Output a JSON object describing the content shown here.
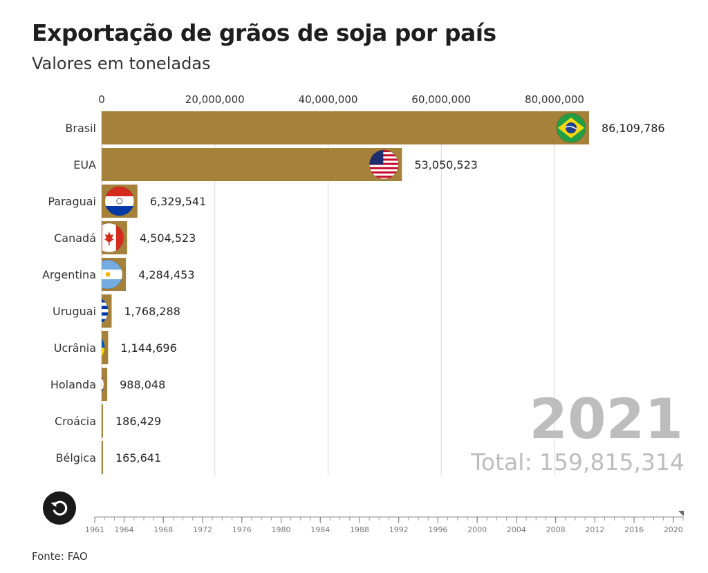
{
  "header": {
    "title": "Exportação de grãos de soja por país",
    "subtitle": "Valores em toneladas"
  },
  "footer": {
    "source": "Fonte: FAO"
  },
  "controls": {
    "replay_icon": "replay-icon"
  },
  "chart_data": {
    "type": "bar",
    "orientation": "horizontal",
    "xlim": [
      0,
      86109786
    ],
    "x_ticks": [
      0,
      20000000,
      40000000,
      60000000,
      80000000
    ],
    "x_tick_labels": [
      "0",
      "20,000,000",
      "40,000,000",
      "60,000,000",
      "80,000,000"
    ],
    "x_axis_position": "top",
    "grid": true,
    "categories": [
      "Brasil",
      "EUA",
      "Paraguai",
      "Canadá",
      "Argentina",
      "Uruguai",
      "Ucrânia",
      "Holanda",
      "Croácia",
      "Bélgica"
    ],
    "values": [
      86109786,
      53050523,
      6329541,
      4504523,
      4284453,
      1768288,
      1144696,
      988048,
      186429,
      165641
    ],
    "value_labels": [
      "86,109,786",
      "53,050,523",
      "6,329,541",
      "4,504,523",
      "4,284,453",
      "1,768,288",
      "1,144,696",
      "988,048",
      "186,429",
      "165,641"
    ],
    "flag_icons": [
      "brazil-flag-icon",
      "usa-flag-icon",
      "paraguay-flag-icon",
      "canada-flag-icon",
      "argentina-flag-icon",
      "uruguay-flag-icon",
      "ukraine-flag-icon",
      "netherlands-flag-icon",
      "croatia-flag-icon",
      "belgium-flag-icon"
    ],
    "bar_color": "#a6813a",
    "year": "2021",
    "total_label": "Total: 159,815,314",
    "timeline": {
      "start": 1961,
      "end": 2021,
      "current": 2021,
      "labels": [
        "1961",
        "1964",
        "1968",
        "1972",
        "1976",
        "1980",
        "1984",
        "1988",
        "1992",
        "1996",
        "2000",
        "2004",
        "2008",
        "2012",
        "2016",
        "2020"
      ]
    }
  }
}
